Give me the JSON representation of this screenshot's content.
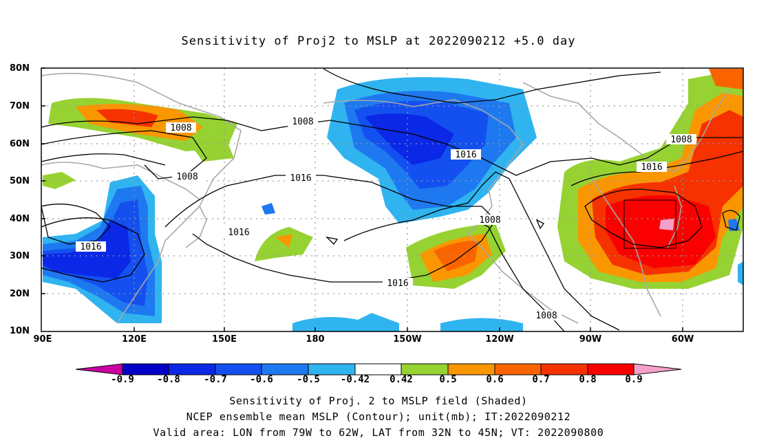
{
  "title": "Sensitivity of Proj2 to MSLP at 2022090212 +5.0 day",
  "axes": {
    "lat_labels": [
      "80N",
      "70N",
      "60N",
      "50N",
      "40N",
      "30N",
      "20N",
      "10N"
    ],
    "lon_labels": [
      "90E",
      "120E",
      "150E",
      "180",
      "150W",
      "120W",
      "90W",
      "60W"
    ]
  },
  "contour_labels": [
    "1008",
    "1008",
    "1008",
    "1008",
    "1008",
    "1016",
    "1016",
    "1016",
    "1016",
    "1016",
    "1016"
  ],
  "colorbar": {
    "labels": [
      "-0.9",
      "-0.8",
      "-0.7",
      "-0.6",
      "-0.5",
      "-0.42",
      "0.42",
      "0.5",
      "0.6",
      "0.7",
      "0.8",
      "0.9"
    ],
    "colors": [
      "#c800a0",
      "#0000c8",
      "#0a28e6",
      "#1450f0",
      "#1e78f0",
      "#30b4f0",
      "#ffffff",
      "#96d232",
      "#fa9600",
      "#fa6400",
      "#f53200",
      "#fa0000",
      "#f5a0c8"
    ]
  },
  "captions": [
    "Sensitivity of Proj. 2 to MSLP field (Shaded)",
    "NCEP ensemble mean MSLP (Contour); unit(mb); IT:2022090212",
    "Valid area: LON from 79W to 62W, LAT from 32N to 45N; VT: 2022090800"
  ]
}
